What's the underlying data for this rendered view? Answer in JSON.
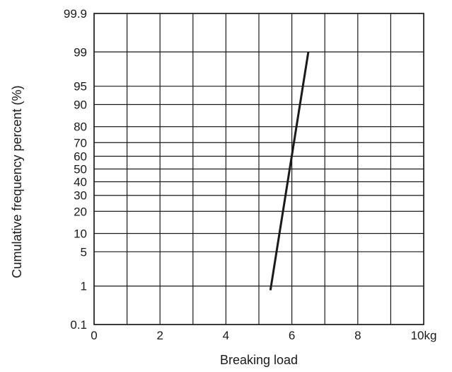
{
  "chart_data": {
    "type": "line",
    "title": "",
    "xlabel": "Breaking load",
    "ylabel": "Cumulative frequency percent (%)",
    "y_scale": "normal-probability",
    "grid": true,
    "x_ticks": [
      {
        "value": 0,
        "label": "0"
      },
      {
        "value": 2,
        "label": "2"
      },
      {
        "value": 4,
        "label": "4"
      },
      {
        "value": 6,
        "label": "6"
      },
      {
        "value": 8,
        "label": "8"
      },
      {
        "value": 10,
        "label": "10kg"
      }
    ],
    "x_gridlines": [
      0,
      1,
      2,
      3,
      4,
      5,
      6,
      7,
      8,
      9,
      10
    ],
    "xlim": [
      0,
      10
    ],
    "y_ticks": [
      {
        "value": 0.1,
        "label": "0.1"
      },
      {
        "value": 1,
        "label": "1"
      },
      {
        "value": 5,
        "label": "5"
      },
      {
        "value": 10,
        "label": "10"
      },
      {
        "value": 20,
        "label": "20"
      },
      {
        "value": 30,
        "label": "30"
      },
      {
        "value": 40,
        "label": "40"
      },
      {
        "value": 50,
        "label": "50"
      },
      {
        "value": 60,
        "label": "60"
      },
      {
        "value": 70,
        "label": "70"
      },
      {
        "value": 80,
        "label": "80"
      },
      {
        "value": 90,
        "label": "90"
      },
      {
        "value": 95,
        "label": "95"
      },
      {
        "value": 99,
        "label": "99"
      },
      {
        "value": 99.9,
        "label": "99.9"
      }
    ],
    "ylim": [
      0.1,
      99.9
    ],
    "series": [
      {
        "x": [
          5.35,
          6.5
        ],
        "y": [
          0.8,
          99
        ],
        "color": "#1a1a1a"
      }
    ]
  }
}
